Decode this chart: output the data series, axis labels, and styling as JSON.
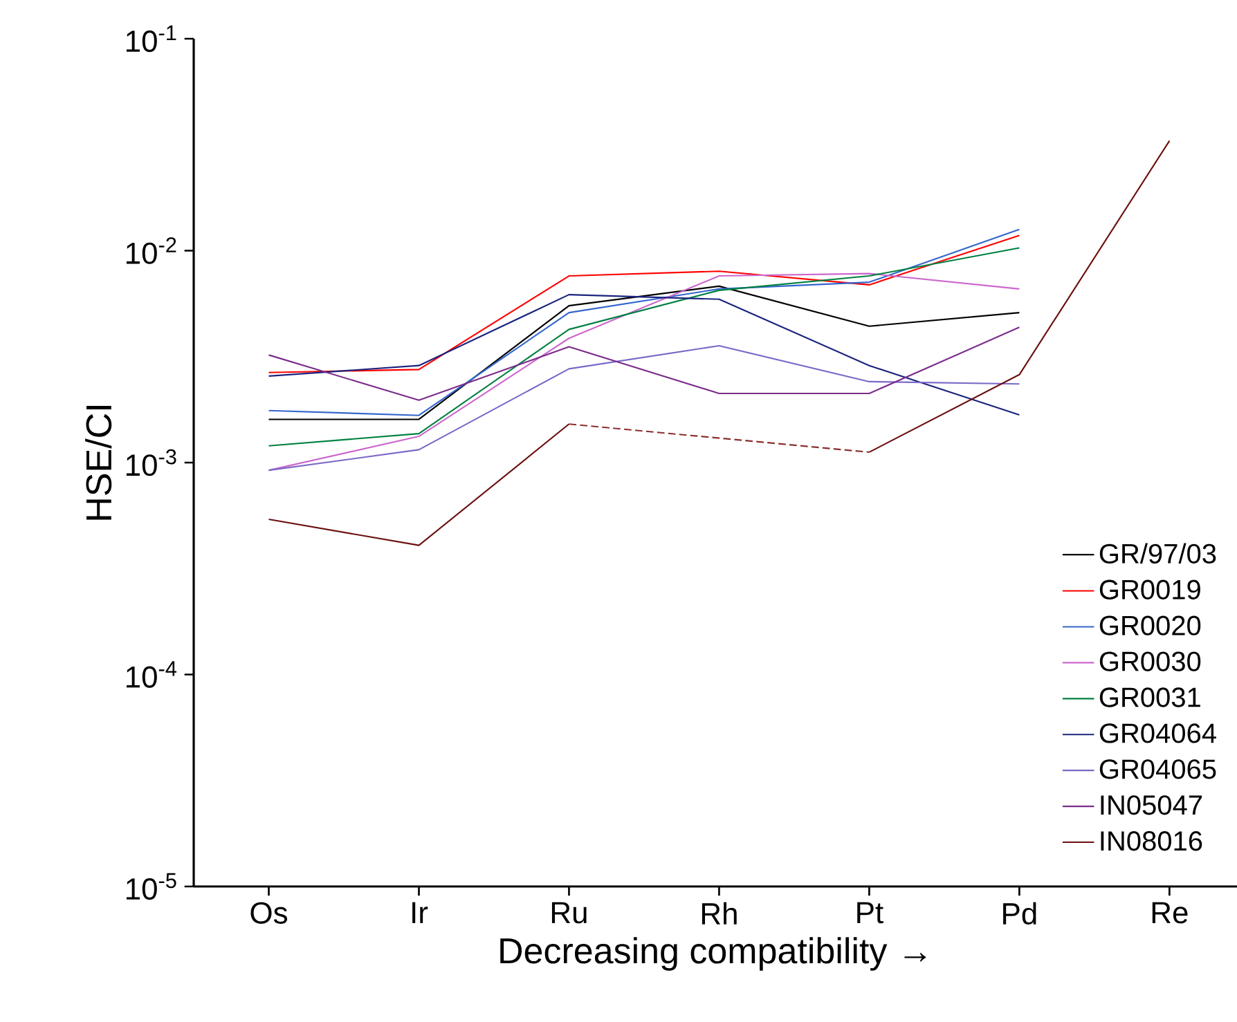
{
  "chart_data": {
    "type": "line",
    "xlabel": "Decreasing compatibility →",
    "ylabel": "HSE/CI",
    "log": "y",
    "categories": [
      "Os",
      "Ir",
      "Ru",
      "Rh",
      "Pt",
      "Pd",
      "Re"
    ],
    "ylim": [
      1e-05,
      0.1
    ],
    "yticks": [
      {
        "value": 1e-05,
        "label": "10$^{-5}$"
      },
      {
        "value": 0.0001,
        "label": "10$^{-4}$"
      },
      {
        "value": 0.001,
        "label": "10$^{-3}$"
      },
      {
        "value": 0.01,
        "label": "10$^{-2}$"
      },
      {
        "value": 0.1,
        "label": "10$^{-1}$"
      }
    ],
    "legend": "bottom right",
    "grid": false,
    "marker": "none",
    "series": [
      {
        "name": "GR/97/03",
        "color": "#000000",
        "values": [
          0.0016,
          0.0016,
          0.0055,
          0.0068,
          0.0044,
          0.0051,
          null
        ]
      },
      {
        "name": "GR0019",
        "color": "#ff0000",
        "values": [
          0.00266,
          0.00275,
          0.0076,
          0.008,
          0.0069,
          0.0118,
          null
        ]
      },
      {
        "name": "GR0020",
        "color": "#3366cc",
        "values": [
          0.00176,
          0.00167,
          0.0051,
          0.0066,
          0.0071,
          0.0126,
          null
        ]
      },
      {
        "name": "GR0030",
        "color": "#cc66cc",
        "values": [
          0.00092,
          0.00133,
          0.00386,
          0.0076,
          0.0078,
          0.0066,
          null
        ]
      },
      {
        "name": "GR0031",
        "color": "#008040",
        "values": [
          0.0012,
          0.00137,
          0.00425,
          0.0065,
          0.0076,
          0.0103,
          null
        ]
      },
      {
        "name": "GR04064",
        "color": "#1a237e",
        "values": [
          0.00256,
          0.00287,
          0.0062,
          0.0059,
          0.00287,
          0.00168,
          null
        ]
      },
      {
        "name": "GR04065",
        "color": "#7b68c8",
        "values": [
          0.00092,
          0.00115,
          0.00277,
          0.00356,
          0.00241,
          0.00235,
          null
        ]
      },
      {
        "name": "IN05047",
        "color": "#7b2c8c",
        "values": [
          0.00322,
          0.00197,
          0.00352,
          0.00212,
          0.00212,
          0.00435,
          null
        ]
      },
      {
        "name": "IN08016",
        "color": "#6b0f0f",
        "values": [
          0.00054,
          0.000407,
          0.00152,
          null,
          0.00112,
          0.0026,
          0.033
        ]
      },
      {
        "color": "#8b2e2e",
        "x": [
          "Ru",
          "Pt"
        ],
        "values": [
          0.00152,
          0.00112
        ],
        "line_style": "dashed"
      }
    ]
  }
}
